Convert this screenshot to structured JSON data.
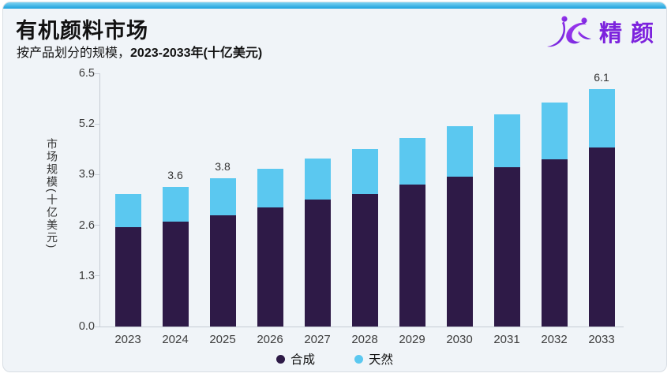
{
  "card": {
    "title": "有机颜料市场",
    "subtitle_prefix": "按产品划分的规模，",
    "subtitle_bold": "2023-2033年(十亿美元)"
  },
  "logo": {
    "brand_text": "精颜",
    "mark": "jc-figures-icon",
    "brand_color": "#7c22dd"
  },
  "chart_data": {
    "type": "bar",
    "stacked": true,
    "title": "有机颜料市场",
    "subtitle": "按产品划分的规模，2023-2033年(十亿美元)",
    "xlabel": "",
    "ylabel": "市场规模(十亿美元)",
    "ylim": [
      0,
      6.5
    ],
    "yticks": [
      "0.0",
      "1.3",
      "2.6",
      "3.9",
      "5.2",
      "6.5"
    ],
    "grid": false,
    "legend_position": "bottom-center",
    "categories": [
      "2023",
      "2024",
      "2025",
      "2026",
      "2027",
      "2028",
      "2029",
      "2030",
      "2031",
      "2032",
      "2033"
    ],
    "series": [
      {
        "name": "合成",
        "color": "#2E1A47",
        "values": [
          2.55,
          2.7,
          2.85,
          3.05,
          3.25,
          3.4,
          3.65,
          3.85,
          4.1,
          4.3,
          4.6
        ]
      },
      {
        "name": "天然",
        "color": "#5BC8F0",
        "values": [
          0.85,
          0.9,
          0.95,
          1.0,
          1.05,
          1.15,
          1.2,
          1.3,
          1.35,
          1.45,
          1.5
        ]
      }
    ],
    "totals": [
      3.4,
      3.6,
      3.8,
      4.05,
      4.3,
      4.55,
      4.85,
      5.15,
      5.45,
      5.75,
      6.1
    ],
    "bar_value_labels": [
      "",
      "3.6",
      "3.8",
      "",
      "",
      "",
      "",
      "",
      "",
      "",
      "6.1"
    ]
  }
}
